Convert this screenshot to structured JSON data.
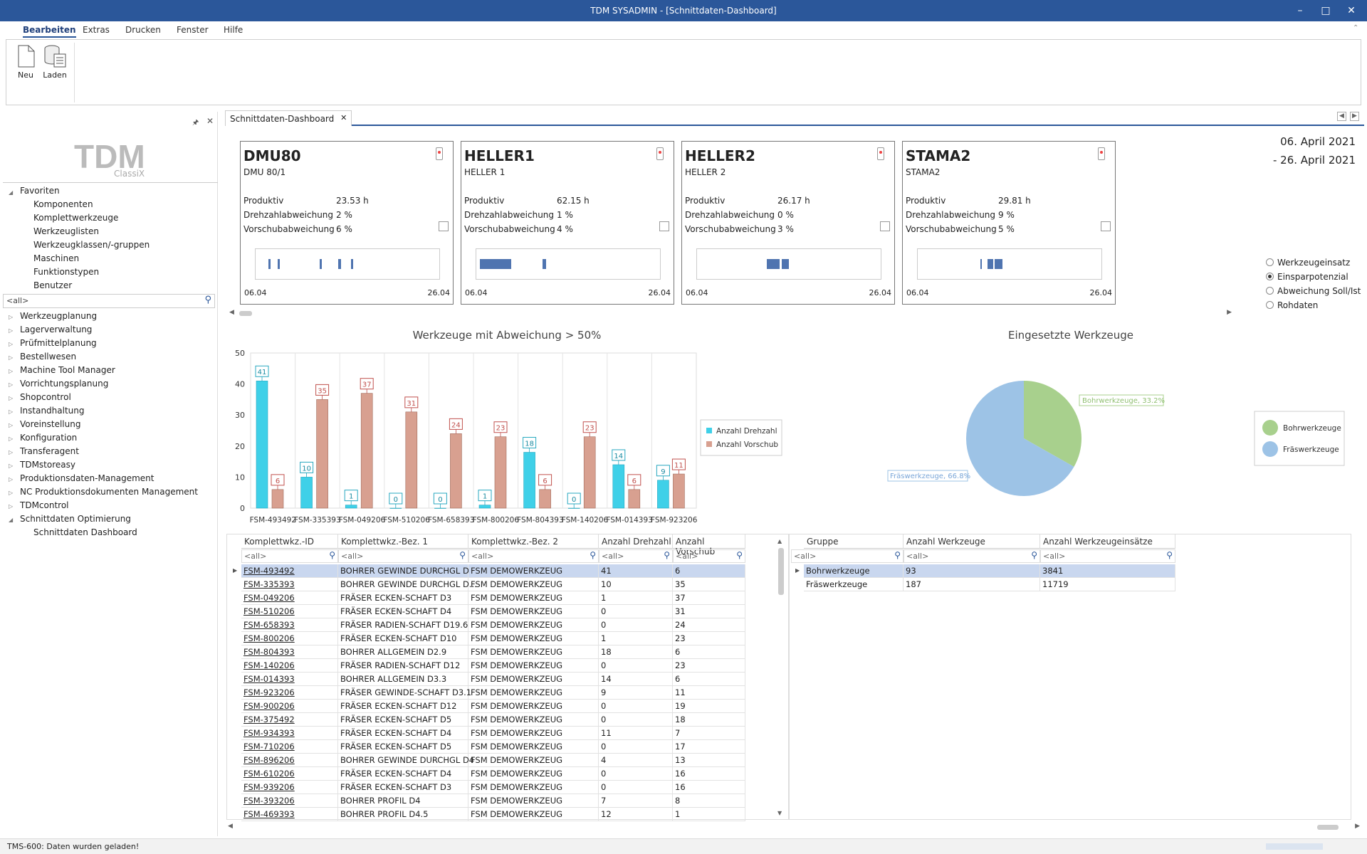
{
  "window": {
    "title": "TDM SYSADMIN - [Schnittdaten-Dashboard]"
  },
  "menu": [
    "Bearbeiten",
    "Extras",
    "Drucken",
    "Fenster",
    "Hilfe"
  ],
  "ribbon": {
    "new_label": "Neu",
    "load_label": "Laden"
  },
  "sidebar": {
    "logo": {
      "main": "TDM",
      "sub": "ClassiX"
    },
    "favorites_title": "Favoriten",
    "favorites": [
      "Komponenten",
      "Komplettwerkzeuge",
      "Werkzeuglisten",
      "Werkzeugklassen/-gruppen",
      "Maschinen",
      "Funktionstypen",
      "Benutzer"
    ],
    "filter_value": "<all>",
    "modules": [
      "Werkzeugplanung",
      "Lagerverwaltung",
      "Prüfmittelplanung",
      "Bestellwesen",
      "Machine Tool Manager",
      "Vorrichtungsplanung",
      "Shopcontrol",
      "Instandhaltung",
      "Voreinstellung",
      "Konfiguration",
      "Transferagent",
      "TDMstoreasy",
      "Produktionsdaten-Management",
      "NC Produktionsdokumenten Management",
      "TDMcontrol",
      "Schnittdaten Optimierung"
    ],
    "sub_item": "Schnittdaten Dashboard"
  },
  "tab": {
    "label": "Schnittdaten-Dashboard"
  },
  "date_range": {
    "from": "06. April 2021",
    "to": "- 26. April 2021"
  },
  "machines": [
    {
      "name": "DMU80",
      "sub": "DMU 80/1",
      "produktiv": "23.53 h",
      "drehzahl": "2 %",
      "vorschub": "6 %",
      "start": "06.04",
      "end": "26.04",
      "bars": [
        [
          0.07,
          0.01
        ],
        [
          0.12,
          0.01
        ],
        [
          0.35,
          0.01
        ],
        [
          0.45,
          0.015
        ],
        [
          0.52,
          0.012
        ]
      ]
    },
    {
      "name": "HELLER1",
      "sub": "HELLER 1",
      "produktiv": "62.15 h",
      "drehzahl": "1 %",
      "vorschub": "4 %",
      "start": "06.04",
      "end": "26.04",
      "bars": [
        [
          0.02,
          0.06
        ],
        [
          0.08,
          0.11
        ],
        [
          0.36,
          0.02
        ]
      ]
    },
    {
      "name": "HELLER2",
      "sub": "HELLER 2",
      "produktiv": "26.17 h",
      "drehzahl": "0 %",
      "vorschub": "3 %",
      "start": "06.04",
      "end": "26.04",
      "bars": [
        [
          0.38,
          0.07
        ],
        [
          0.46,
          0.04
        ]
      ]
    },
    {
      "name": "STAMA2",
      "sub": "STAMA2",
      "produktiv": "29.81 h",
      "drehzahl": "9 %",
      "vorschub": "5 %",
      "start": "06.04",
      "end": "26.04",
      "bars": [
        [
          0.34,
          0.01
        ],
        [
          0.38,
          0.03
        ],
        [
          0.42,
          0.04
        ]
      ]
    }
  ],
  "labels": {
    "produktiv": "Produktiv",
    "drehzahl": "Drehzahlabweichung",
    "vorschub": "Vorschubabweichung"
  },
  "view_options": [
    {
      "label": "Werkzeugeinsatz",
      "selected": false
    },
    {
      "label": "Einsparpotenzial",
      "selected": true
    },
    {
      "label": "Abweichung Soll/Ist",
      "selected": false
    },
    {
      "label": "Rohdaten",
      "selected": false
    }
  ],
  "chart_data": [
    {
      "type": "bar",
      "title": "Werkzeuge mit Abweichung > 50%",
      "categories": [
        "FSM-493492",
        "FSM-335393",
        "FSM-049206",
        "FSM-510206",
        "FSM-658393",
        "FSM-800206",
        "FSM-804393",
        "FSM-140206",
        "FSM-014393",
        "FSM-923206"
      ],
      "series": [
        {
          "name": "Anzahl Drehzahl",
          "values": [
            41,
            10,
            1,
            0,
            0,
            1,
            18,
            0,
            14,
            9
          ],
          "color": "#3fd0e8"
        },
        {
          "name": "Anzahl Vorschub",
          "values": [
            6,
            35,
            37,
            31,
            24,
            23,
            6,
            23,
            6,
            11
          ],
          "color": "#d8a090"
        }
      ],
      "ylim": [
        0,
        50
      ],
      "yticks": [
        0,
        10,
        20,
        30,
        40,
        50
      ],
      "legend": "right"
    },
    {
      "type": "pie",
      "title": "Eingesetzte Werkzeuge",
      "categories": [
        "Bohrwerkzeuge",
        "Fräswerkzeuge"
      ],
      "values": [
        33.2,
        66.8
      ],
      "slice_labels": [
        "Bohrwerkzeuge, 33.2%",
        "Fräswerkzeuge, 66.8%"
      ],
      "colors": [
        "#a8d08d",
        "#9dc3e6"
      ],
      "legend": "right"
    }
  ],
  "tool_grid": {
    "columns": [
      "Komplettwkz.-ID",
      "Komplettwkz.-Bez. 1",
      "Komplettwkz.-Bez. 2",
      "Anzahl Drehzahl",
      "Anzahl Vorschub"
    ],
    "filter": "<all>",
    "rows": [
      [
        "FSM-493492",
        "BOHRER GEWINDE DURCHGL D...",
        "FSM DEMOWERKZEUG",
        "41",
        "6"
      ],
      [
        "FSM-335393",
        "BOHRER GEWINDE DURCHGL D...",
        "FSM DEMOWERKZEUG",
        "10",
        "35"
      ],
      [
        "FSM-049206",
        "FRÄSER ECKEN-SCHAFT D3",
        "FSM DEMOWERKZEUG",
        "1",
        "37"
      ],
      [
        "FSM-510206",
        "FRÄSER ECKEN-SCHAFT D4",
        "FSM DEMOWERKZEUG",
        "0",
        "31"
      ],
      [
        "FSM-658393",
        "FRÄSER RADIEN-SCHAFT D19.6",
        "FSM DEMOWERKZEUG",
        "0",
        "24"
      ],
      [
        "FSM-800206",
        "FRÄSER ECKEN-SCHAFT D10",
        "FSM DEMOWERKZEUG",
        "1",
        "23"
      ],
      [
        "FSM-804393",
        "BOHRER ALLGEMEIN D2.9",
        "FSM DEMOWERKZEUG",
        "18",
        "6"
      ],
      [
        "FSM-140206",
        "FRÄSER RADIEN-SCHAFT D12",
        "FSM DEMOWERKZEUG",
        "0",
        "23"
      ],
      [
        "FSM-014393",
        "BOHRER ALLGEMEIN D3.3",
        "FSM DEMOWERKZEUG",
        "14",
        "6"
      ],
      [
        "FSM-923206",
        "FRÄSER GEWINDE-SCHAFT D3.1",
        "FSM DEMOWERKZEUG",
        "9",
        "11"
      ],
      [
        "FSM-900206",
        "FRÄSER ECKEN-SCHAFT D12",
        "FSM DEMOWERKZEUG",
        "0",
        "19"
      ],
      [
        "FSM-375492",
        "FRÄSER ECKEN-SCHAFT D5",
        "FSM DEMOWERKZEUG",
        "0",
        "18"
      ],
      [
        "FSM-934393",
        "FRÄSER ECKEN-SCHAFT D4",
        "FSM DEMOWERKZEUG",
        "11",
        "7"
      ],
      [
        "FSM-710206",
        "FRÄSER ECKEN-SCHAFT D5",
        "FSM DEMOWERKZEUG",
        "0",
        "17"
      ],
      [
        "FSM-896206",
        "BOHRER GEWINDE DURCHGL D4",
        "FSM DEMOWERKZEUG",
        "4",
        "13"
      ],
      [
        "FSM-610206",
        "FRÄSER ECKEN-SCHAFT D4",
        "FSM DEMOWERKZEUG",
        "0",
        "16"
      ],
      [
        "FSM-939206",
        "FRÄSER ECKEN-SCHAFT D3",
        "FSM DEMOWERKZEUG",
        "0",
        "16"
      ],
      [
        "FSM-393206",
        "BOHRER PROFIL D4",
        "FSM DEMOWERKZEUG",
        "7",
        "8"
      ],
      [
        "FSM-469393",
        "BOHRER PROFIL D4.5",
        "FSM DEMOWERKZEUG",
        "12",
        "1"
      ]
    ]
  },
  "group_grid": {
    "columns": [
      "Gruppe",
      "Anzahl Werkzeuge",
      "Anzahl Werkzeugeinsätze"
    ],
    "filter": "<all>",
    "rows": [
      [
        "Bohrwerkzeuge",
        "93",
        "3841"
      ],
      [
        "Fräswerkzeuge",
        "187",
        "11719"
      ]
    ]
  },
  "status": {
    "message": "TMS-600: Daten wurden geladen!"
  }
}
